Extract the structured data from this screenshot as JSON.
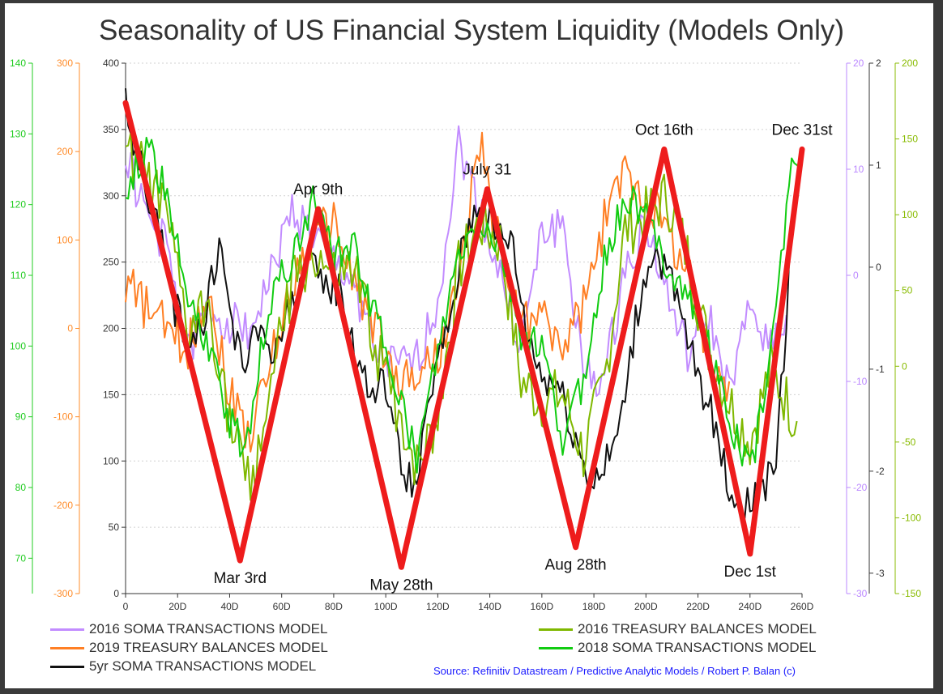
{
  "chart_data": {
    "type": "line",
    "title": "Seasonality of US Financial System Liquidity (Models Only)",
    "source": "Source: Refinitiv Datastream / Predictive Analytic Models  / Robert P. Balan (c)",
    "x_axis": {
      "range": [
        0,
        260
      ],
      "ticks": [
        "0",
        "20D",
        "40D",
        "60D",
        "80D",
        "100D",
        "120D",
        "140D",
        "160D",
        "180D",
        "200D",
        "220D",
        "240D",
        "260D"
      ],
      "tick_values": [
        0,
        20,
        40,
        60,
        80,
        100,
        120,
        140,
        160,
        180,
        200,
        220,
        240,
        260
      ]
    },
    "grid": "horizontal-dotted",
    "y_axes": [
      {
        "id": "main",
        "side": "left",
        "color": "#333333",
        "range": [
          0,
          400
        ],
        "ticks": [
          "0",
          "50",
          "100",
          "150",
          "200",
          "250",
          "300",
          "350",
          "400"
        ]
      },
      {
        "id": "orange",
        "side": "left",
        "color": "#ff8c2a",
        "range": [
          -300,
          300
        ],
        "ticks": [
          "-300",
          "-200",
          "-100",
          "0",
          "100",
          "200",
          "300"
        ]
      },
      {
        "id": "green",
        "side": "left",
        "color": "#22cc22",
        "range": [
          65,
          140
        ],
        "ticks": [
          "70",
          "80",
          "90",
          "100",
          "110",
          "120",
          "130",
          "140"
        ]
      },
      {
        "id": "purple",
        "side": "right",
        "color": "#bb88ff",
        "range": [
          -30,
          20
        ],
        "ticks": [
          "-30",
          "-20",
          "-10",
          "0",
          "10",
          "20"
        ]
      },
      {
        "id": "black",
        "side": "right",
        "color": "#333333",
        "range": [
          -3.2,
          2
        ],
        "ticks": [
          "-3",
          "-2",
          "-1",
          "0",
          "1",
          "2"
        ]
      },
      {
        "id": "olive",
        "side": "right",
        "color": "#88bb00",
        "range": [
          -150,
          200
        ],
        "ticks": [
          "-150",
          "-100",
          "-50",
          "0",
          "50",
          "100",
          "150",
          "200"
        ]
      }
    ],
    "series": [
      {
        "name": "2016 SOMA TRANSACTIONS MODEL",
        "color": "#c28cff",
        "noise": 0.55,
        "offset": 5,
        "x": [
          0,
          8,
          16,
          24,
          32,
          40,
          48,
          56,
          64,
          72,
          80,
          88,
          96,
          104,
          112,
          120,
          128,
          136,
          144,
          152,
          160,
          168,
          176,
          184,
          192,
          200,
          208,
          216,
          224,
          232,
          240,
          248,
          254
        ],
        "y": [
          330,
          285,
          260,
          180,
          215,
          205,
          200,
          240,
          290,
          270,
          250,
          235,
          180,
          170,
          175,
          220,
          340,
          290,
          240,
          185,
          270,
          280,
          165,
          160,
          245,
          280,
          225,
          180,
          210,
          150,
          215,
          190,
          210
        ]
      },
      {
        "name": "2019 TREASURY BALANCES MODEL",
        "color": "#ff7f24",
        "noise": 0.6,
        "offset": 15,
        "x": [
          0,
          8,
          16,
          24,
          32,
          40,
          48,
          56,
          64,
          72,
          80,
          88,
          96,
          104,
          112,
          120,
          128,
          136,
          144,
          152,
          160,
          168,
          176,
          184,
          192,
          200,
          208,
          216,
          224,
          232
        ],
        "y": [
          235,
          215,
          200,
          185,
          230,
          150,
          120,
          175,
          235,
          270,
          280,
          235,
          200,
          160,
          165,
          180,
          230,
          340,
          260,
          205,
          210,
          185,
          215,
          280,
          320,
          300,
          275,
          245,
          175,
          160
        ]
      },
      {
        "name": "5yr SOMA TRANSACTIONS MODEL",
        "color": "#111111",
        "noise": 0.5,
        "offset": 25,
        "x": [
          0,
          6,
          12,
          18,
          24,
          30,
          36,
          42,
          46,
          52,
          58,
          64,
          70,
          76,
          82,
          88,
          94,
          100,
          106,
          112,
          118,
          124,
          130,
          136,
          142,
          148,
          154,
          160,
          166,
          172,
          178,
          184,
          190,
          196,
          202,
          208,
          214,
          220,
          226,
          232,
          238,
          244,
          250,
          256
        ],
        "y": [
          370,
          320,
          280,
          220,
          195,
          200,
          265,
          190,
          175,
          200,
          180,
          225,
          245,
          235,
          230,
          185,
          150,
          160,
          95,
          80,
          160,
          200,
          265,
          300,
          270,
          270,
          200,
          165,
          160,
          125,
          85,
          95,
          125,
          205,
          260,
          245,
          205,
          165,
          130,
          80,
          65,
          80,
          90,
          270
        ]
      },
      {
        "name": "2016 TREASURY BALANCES MODEL",
        "color": "#7fb800",
        "noise": 0.75,
        "offset": 35,
        "x": [
          0,
          8,
          16,
          24,
          32,
          40,
          48,
          56,
          64,
          72,
          80,
          88,
          96,
          104,
          112,
          120,
          128,
          136,
          144,
          152,
          160,
          168,
          176,
          184,
          192,
          200,
          208,
          216,
          224,
          232,
          240,
          248,
          258
        ],
        "y": [
          330,
          315,
          280,
          195,
          220,
          130,
          75,
          160,
          230,
          255,
          235,
          240,
          185,
          145,
          95,
          135,
          245,
          280,
          265,
          160,
          145,
          150,
          105,
          160,
          275,
          285,
          300,
          255,
          185,
          145,
          115,
          170,
          130
        ]
      },
      {
        "name": "2018 SOMA TRANSACTIONS MODEL",
        "color": "#11cc11",
        "noise": 0.45,
        "offset": 45,
        "x": [
          0,
          8,
          16,
          24,
          32,
          40,
          46,
          52,
          58,
          64,
          72,
          80,
          88,
          96,
          104,
          112,
          120,
          128,
          136,
          144,
          152,
          160,
          168,
          176,
          184,
          192,
          200,
          208,
          216,
          224,
          232,
          240,
          248,
          256,
          260
        ],
        "y": [
          300,
          340,
          300,
          220,
          185,
          130,
          110,
          180,
          240,
          250,
          300,
          255,
          260,
          210,
          160,
          100,
          180,
          255,
          280,
          260,
          195,
          185,
          115,
          160,
          250,
          300,
          285,
          250,
          225,
          190,
          130,
          90,
          175,
          330,
          330
        ]
      },
      {
        "name": "overlay",
        "color": "#ee1c1c",
        "x": [
          0,
          44,
          74,
          106,
          139,
          173,
          207,
          240,
          260
        ],
        "y": [
          370,
          25,
          290,
          20,
          305,
          35,
          335,
          30,
          335
        ]
      }
    ],
    "annotations": [
      {
        "text": "Mar 3rd",
        "x": 44,
        "y": 25
      },
      {
        "text": "Apr 9th",
        "x": 74,
        "y": 290
      },
      {
        "text": "May 28th",
        "x": 106,
        "y": 20
      },
      {
        "text": "July 31",
        "x": 139,
        "y": 305
      },
      {
        "text": "Aug 28th",
        "x": 173,
        "y": 35
      },
      {
        "text": "Oct 16th",
        "x": 207,
        "y": 335
      },
      {
        "text": "Dec 1st",
        "x": 240,
        "y": 30
      },
      {
        "text": "Dec 31st",
        "x": 260,
        "y": 335
      }
    ],
    "legend": {
      "placement": "bottom"
    }
  }
}
